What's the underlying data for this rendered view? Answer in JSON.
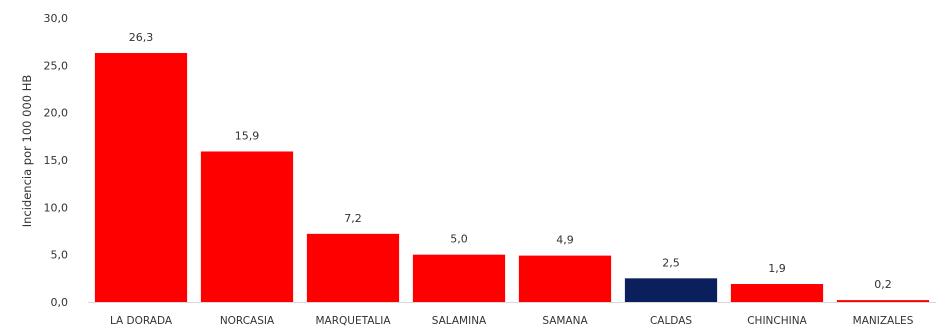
{
  "chart_data": {
    "type": "bar",
    "ylabel": "Incidencia por 100 000 HB",
    "ylim": [
      0,
      30
    ],
    "yticks": [
      "0,0",
      "5,0",
      "10,0",
      "15,0",
      "20,0",
      "25,0",
      "30,0"
    ],
    "ytick_values": [
      0,
      5,
      10,
      15,
      20,
      25,
      30
    ],
    "grid": false,
    "categories": [
      "LA DORADA",
      "NORCASIA",
      "MARQUETALIA",
      "SALAMINA",
      "SAMANA",
      "CALDAS",
      "CHINCHINA",
      "MANIZALES"
    ],
    "values": [
      26.3,
      15.9,
      7.2,
      5.0,
      4.9,
      2.5,
      1.9,
      0.2
    ],
    "data_labels": [
      "26,3",
      "15,9",
      "7,2",
      "5,0",
      "4,9",
      "2,5",
      "1,9",
      "0,2"
    ],
    "colors": [
      "#ff0000",
      "#ff0000",
      "#ff0000",
      "#ff0000",
      "#ff0000",
      "#0b1f5c",
      "#ff0000",
      "#ff0000"
    ]
  }
}
